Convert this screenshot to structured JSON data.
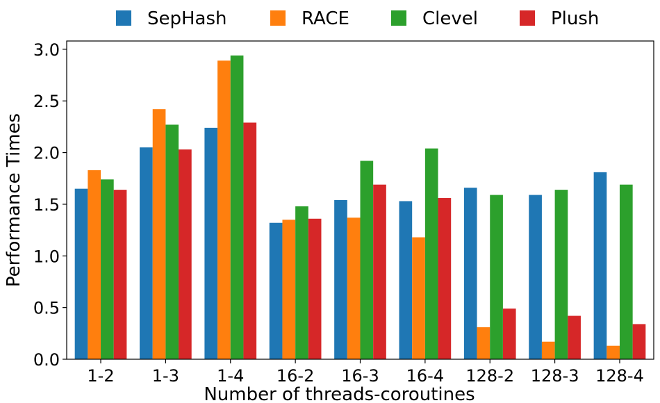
{
  "chart_data": {
    "type": "bar",
    "title": "",
    "xlabel": "Number of threads-coroutines",
    "ylabel": "Performance Times",
    "categories": [
      "1-2",
      "1-3",
      "1-4",
      "16-2",
      "16-3",
      "16-4",
      "128-2",
      "128-3",
      "128-4"
    ],
    "ylim": [
      0,
      3.08
    ],
    "yticks": [
      "0.0",
      "0.5",
      "1.0",
      "1.5",
      "2.0",
      "2.5",
      "3.0"
    ],
    "legend_position": "top-center",
    "grid": false,
    "series": [
      {
        "name": "SepHash",
        "color": "#1f77b4",
        "values": [
          1.65,
          2.05,
          2.24,
          1.32,
          1.54,
          1.53,
          1.66,
          1.59,
          1.81
        ]
      },
      {
        "name": "RACE",
        "color": "#ff7f0e",
        "values": [
          1.83,
          2.42,
          2.89,
          1.35,
          1.37,
          1.18,
          0.31,
          0.17,
          0.13
        ]
      },
      {
        "name": "Clevel",
        "color": "#2ca02c",
        "values": [
          1.74,
          2.27,
          2.94,
          1.48,
          1.92,
          2.04,
          1.59,
          1.64,
          1.69
        ]
      },
      {
        "name": "Plush",
        "color": "#d62728",
        "values": [
          1.64,
          2.03,
          2.29,
          1.36,
          1.69,
          1.56,
          0.49,
          0.42,
          0.34
        ]
      }
    ]
  }
}
